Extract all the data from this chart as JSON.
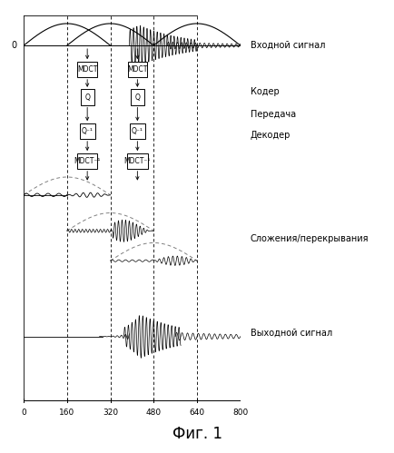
{
  "title": "Фиг. 1",
  "xlabel_ticks": [
    0,
    160,
    320,
    480,
    640,
    800
  ],
  "vline_positions": [
    160,
    320,
    480,
    640
  ],
  "label_входной": "Входной сигнал",
  "label_кодер": "Кодер",
  "label_передача": "Передача",
  "label_декодер": "Декодер",
  "label_сложения": "Сложения/перекрывания",
  "label_выходной": "Выходной сигнал",
  "bg_color": "#ffffff",
  "line_color": "#000000"
}
